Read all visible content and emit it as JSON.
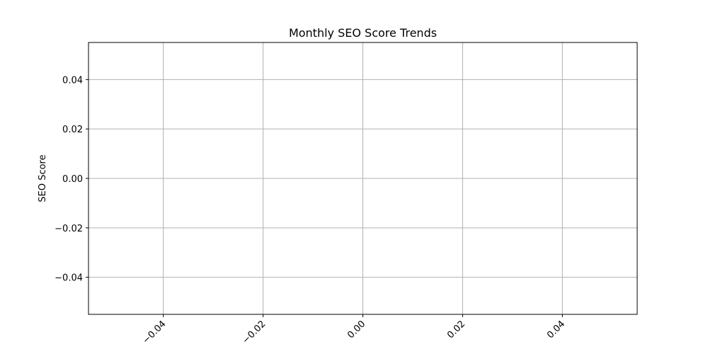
{
  "chart_data": {
    "type": "line",
    "title": "Monthly SEO Score Trends",
    "xlabel": "",
    "ylabel": "SEO Score",
    "xlim": [
      -0.055,
      0.055
    ],
    "ylim": [
      -0.055,
      0.055
    ],
    "x_ticks": [
      -0.04,
      -0.02,
      0.0,
      0.02,
      0.04
    ],
    "x_tick_labels": [
      "−0.04",
      "−0.02",
      "0.00",
      "0.02",
      "0.04"
    ],
    "y_ticks": [
      0.04,
      0.02,
      0.0,
      -0.02,
      -0.04
    ],
    "y_tick_labels": [
      "0.04",
      "0.02",
      "0.00",
      "−0.02",
      "−0.04"
    ],
    "x_tick_rotation_deg": 45,
    "grid": true,
    "series": [],
    "colors": {
      "grid": "#b0b0b0",
      "axes": "#000000",
      "background": "#ffffff"
    }
  }
}
